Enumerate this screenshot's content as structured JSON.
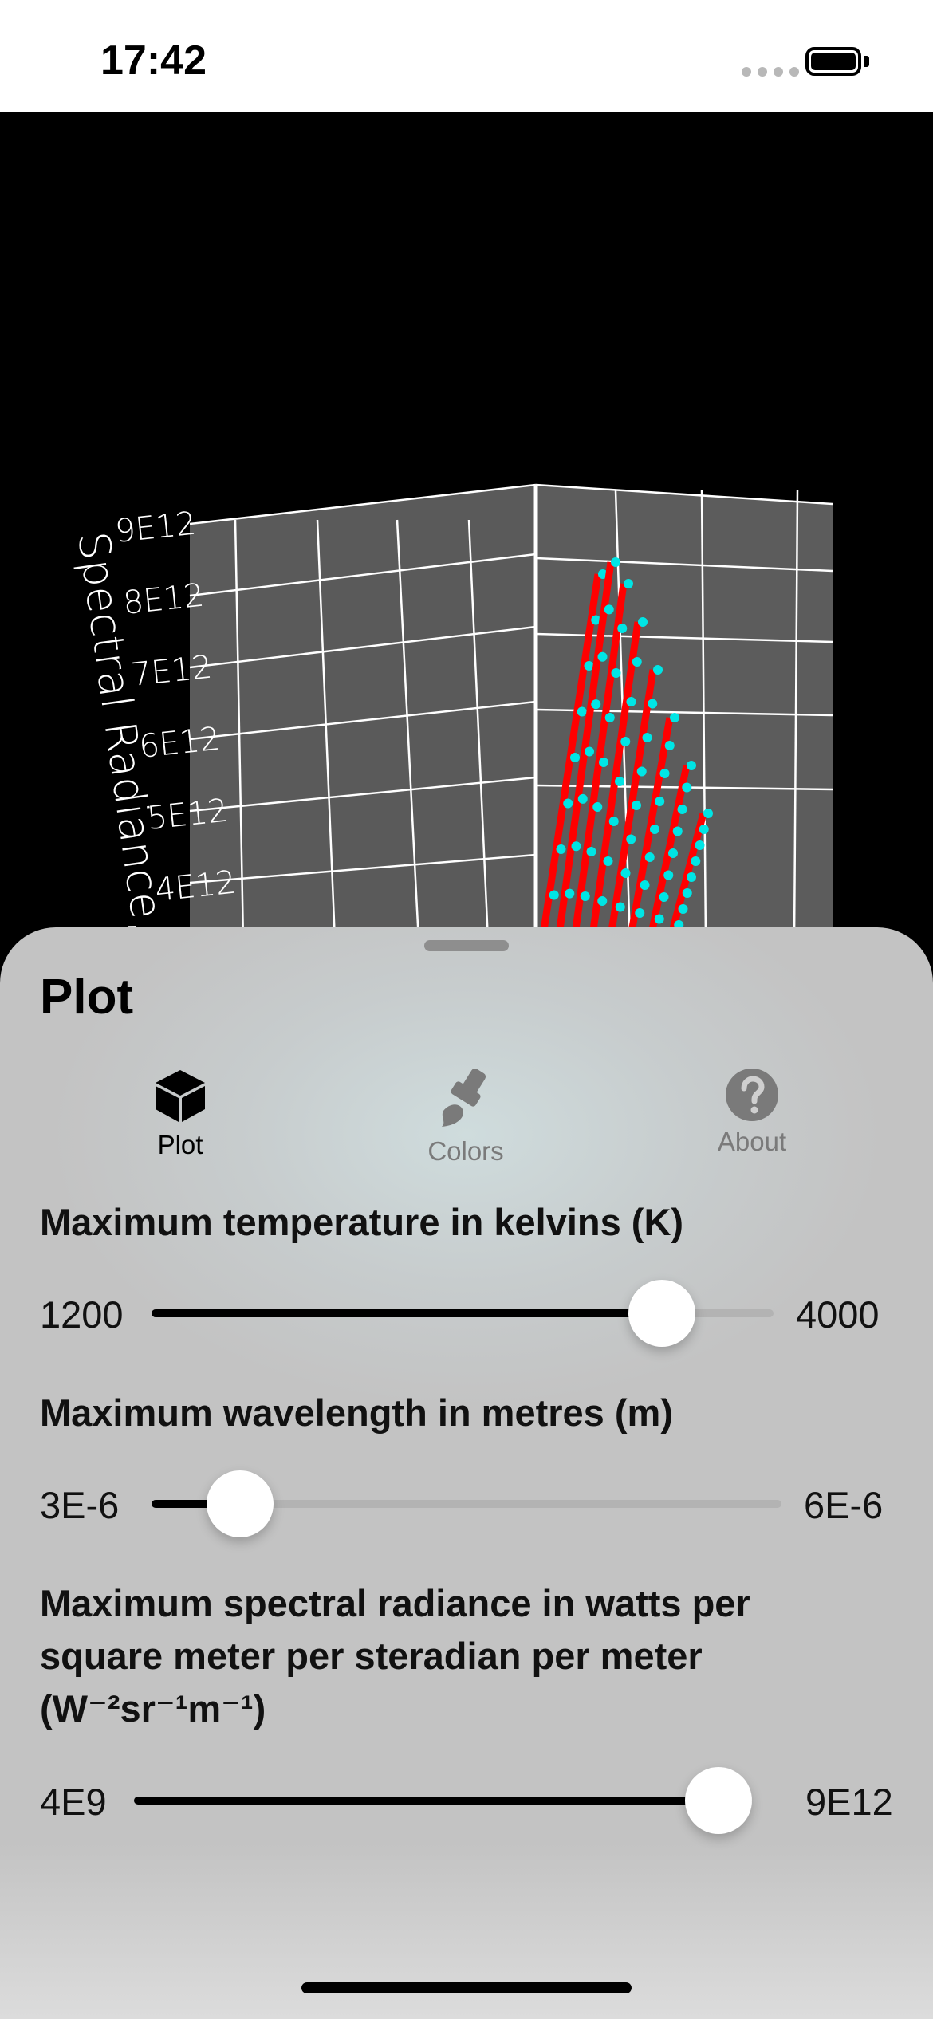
{
  "status_bar": {
    "time": "17:42",
    "battery_icon": "battery-full-icon",
    "signal_icon": "signal-dots-icon"
  },
  "plot": {
    "axis_label_z": "Spectral Radiance, B",
    "z_ticks": [
      "9E12",
      "8E12",
      "7E12",
      "6E12",
      "5E12",
      "4E12"
    ],
    "colors": {
      "background": "#000000",
      "wall": "#5a5a5a",
      "grid": "#ffffff",
      "bars": "#ff0000",
      "points": "#00e5e5"
    }
  },
  "sheet": {
    "title": "Plot",
    "tabs": [
      {
        "label": "Plot",
        "icon": "cube-icon",
        "selected": true
      },
      {
        "label": "Colors",
        "icon": "paintbrush-icon",
        "selected": false
      },
      {
        "label": "About",
        "icon": "question-circle-icon",
        "selected": false
      }
    ],
    "sliders": [
      {
        "label": "Maximum temperature in kelvins (K)",
        "min": "1200",
        "max": "4000",
        "value_fraction": 0.82
      },
      {
        "label": "Maximum wavelength in metres (m)",
        "min": "3E-6",
        "max": "6E-6",
        "value_fraction": 0.14
      },
      {
        "label": "Maximum spectral radiance in watts per square meter per steradian per meter (W⁻²sr⁻¹m⁻¹)",
        "min": "4E9",
        "max": "9E12",
        "value_fraction": 1.0
      }
    ]
  }
}
